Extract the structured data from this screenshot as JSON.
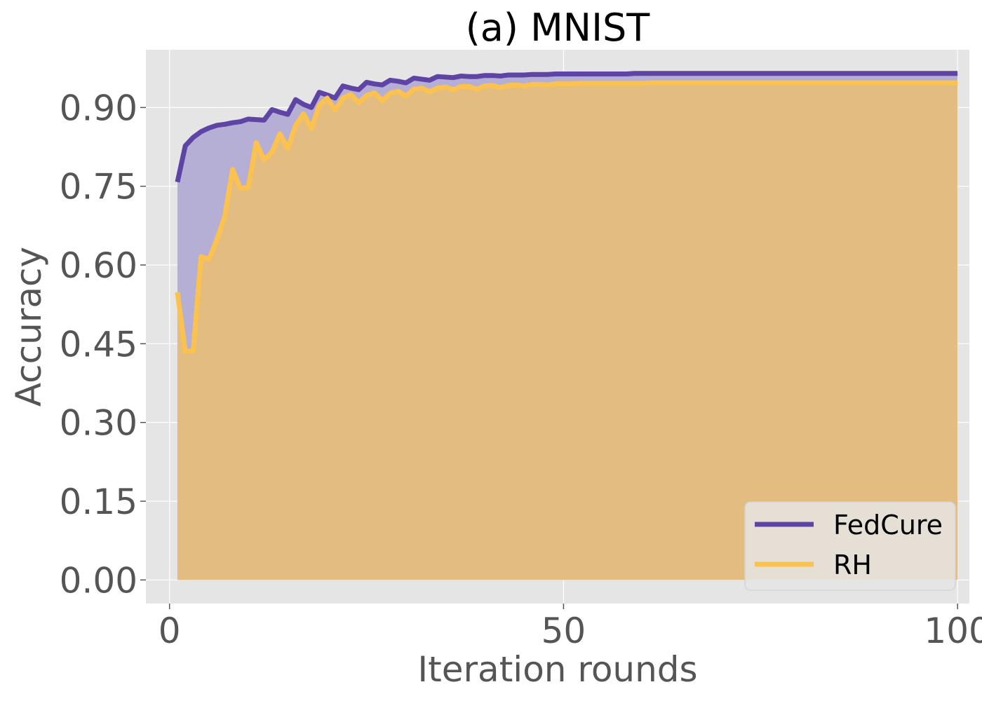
{
  "chart_data": {
    "type": "line",
    "title": "(a) MNIST",
    "xlabel": "Iteration rounds",
    "ylabel": "Accuracy",
    "xlim": [
      -3,
      101.5
    ],
    "ylim": [
      -0.045,
      1.01
    ],
    "xticks": [
      0,
      50,
      100
    ],
    "xtick_labels": [
      "0",
      "50",
      "100"
    ],
    "yticks": [
      0.0,
      0.15,
      0.3,
      0.45,
      0.6,
      0.75,
      0.9
    ],
    "ytick_labels": [
      "0.00",
      "0.15",
      "0.30",
      "0.45",
      "0.60",
      "0.75",
      "0.90"
    ],
    "grid": true,
    "fill_to_zero": true,
    "legend_position": "lower-right",
    "x": [
      1,
      2,
      3,
      4,
      5,
      6,
      7,
      8,
      9,
      10,
      11,
      12,
      13,
      14,
      15,
      16,
      17,
      18,
      19,
      20,
      21,
      22,
      23,
      24,
      25,
      26,
      27,
      28,
      29,
      30,
      31,
      32,
      33,
      34,
      35,
      36,
      37,
      38,
      39,
      40,
      41,
      42,
      43,
      44,
      45,
      46,
      47,
      48,
      49,
      50,
      51,
      52,
      53,
      54,
      55,
      56,
      57,
      58,
      59,
      60,
      61,
      62,
      63,
      64,
      65,
      66,
      67,
      68,
      69,
      70,
      71,
      72,
      73,
      74,
      75,
      76,
      77,
      78,
      79,
      80,
      81,
      82,
      83,
      84,
      85,
      86,
      87,
      88,
      89,
      90,
      91,
      92,
      93,
      94,
      95,
      96,
      97,
      98,
      99,
      100
    ],
    "series": [
      {
        "name": "FedCure",
        "color": "#5e44a5",
        "fill": "#b5aed5",
        "values": [
          0.758,
          0.827,
          0.843,
          0.854,
          0.861,
          0.866,
          0.868,
          0.871,
          0.873,
          0.878,
          0.877,
          0.876,
          0.896,
          0.891,
          0.887,
          0.915,
          0.906,
          0.9,
          0.929,
          0.924,
          0.918,
          0.941,
          0.937,
          0.934,
          0.948,
          0.945,
          0.943,
          0.952,
          0.95,
          0.947,
          0.956,
          0.954,
          0.952,
          0.959,
          0.958,
          0.957,
          0.96,
          0.959,
          0.959,
          0.961,
          0.961,
          0.96,
          0.962,
          0.962,
          0.962,
          0.963,
          0.963,
          0.963,
          0.964,
          0.964,
          0.964,
          0.964,
          0.964,
          0.964,
          0.964,
          0.964,
          0.964,
          0.964,
          0.965,
          0.965,
          0.965,
          0.965,
          0.965,
          0.965,
          0.965,
          0.965,
          0.965,
          0.965,
          0.965,
          0.965,
          0.965,
          0.965,
          0.965,
          0.965,
          0.965,
          0.965,
          0.965,
          0.965,
          0.965,
          0.965,
          0.965,
          0.965,
          0.965,
          0.965,
          0.965,
          0.965,
          0.965,
          0.965,
          0.965,
          0.965,
          0.965,
          0.965,
          0.965,
          0.965,
          0.965,
          0.965,
          0.965,
          0.965,
          0.965,
          0.965
        ]
      },
      {
        "name": "RH",
        "color": "#fcc24f",
        "fill": "#e2bc80",
        "values": [
          0.548,
          0.436,
          0.436,
          0.616,
          0.611,
          0.648,
          0.692,
          0.782,
          0.746,
          0.748,
          0.833,
          0.8,
          0.815,
          0.85,
          0.822,
          0.866,
          0.888,
          0.86,
          0.904,
          0.918,
          0.895,
          0.918,
          0.925,
          0.909,
          0.923,
          0.928,
          0.913,
          0.927,
          0.931,
          0.922,
          0.935,
          0.937,
          0.93,
          0.937,
          0.939,
          0.934,
          0.94,
          0.94,
          0.935,
          0.941,
          0.942,
          0.938,
          0.942,
          0.943,
          0.941,
          0.944,
          0.944,
          0.943,
          0.945,
          0.945,
          0.945,
          0.946,
          0.946,
          0.946,
          0.946,
          0.946,
          0.946,
          0.946,
          0.946,
          0.946,
          0.947,
          0.947,
          0.947,
          0.947,
          0.947,
          0.947,
          0.947,
          0.947,
          0.947,
          0.947,
          0.947,
          0.947,
          0.947,
          0.947,
          0.947,
          0.947,
          0.947,
          0.947,
          0.947,
          0.947,
          0.947,
          0.947,
          0.947,
          0.947,
          0.947,
          0.947,
          0.947,
          0.947,
          0.947,
          0.947,
          0.947,
          0.947,
          0.947,
          0.947,
          0.947,
          0.947,
          0.947,
          0.947,
          0.947,
          0.947
        ]
      }
    ]
  }
}
